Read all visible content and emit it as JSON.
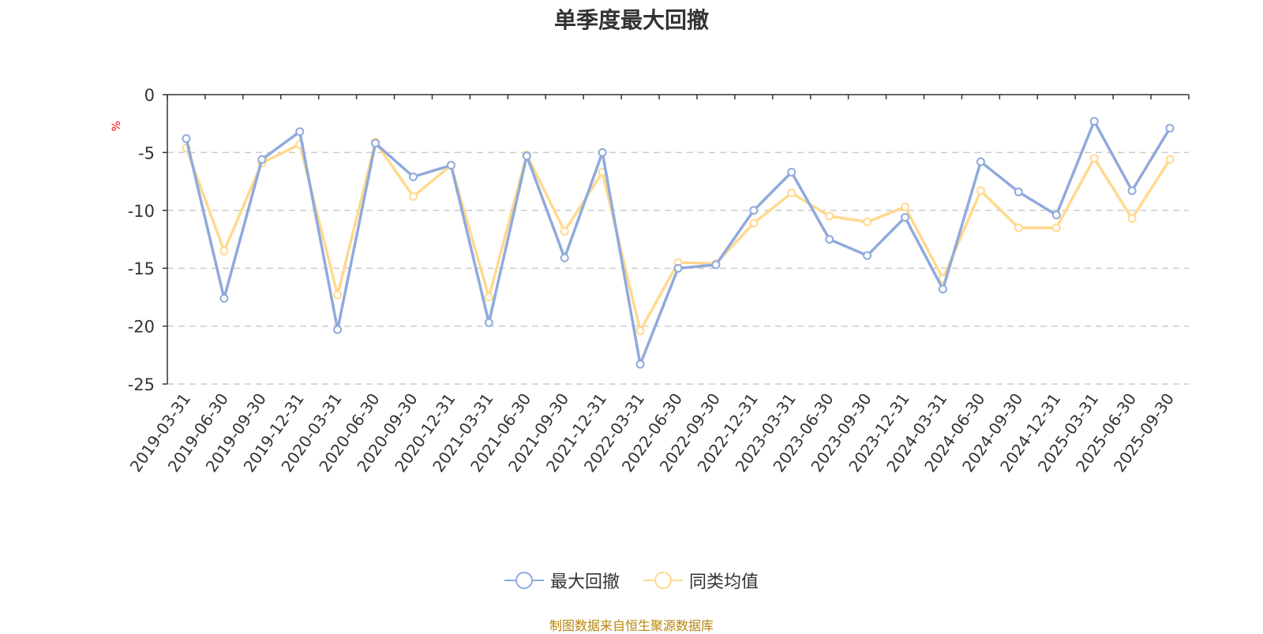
{
  "chart_data": {
    "type": "line",
    "title": "单季度最大回撤",
    "ylabel": "%",
    "ylim": [
      -25,
      0
    ],
    "yticks": [
      0,
      -5,
      -10,
      -15,
      -20,
      -25
    ],
    "grid": true,
    "legend_position": "bottom",
    "categories": [
      "2019-03-31",
      "2019-06-30",
      "2019-09-30",
      "2019-12-31",
      "2020-03-31",
      "2020-06-30",
      "2020-09-30",
      "2020-12-31",
      "2021-03-31",
      "2021-06-30",
      "2021-09-30",
      "2021-12-31",
      "2022-03-31",
      "2022-06-30",
      "2022-09-30",
      "2022-12-31",
      "2023-03-31",
      "2023-06-30",
      "2023-09-30",
      "2023-12-31",
      "2024-03-31",
      "2024-06-30",
      "2024-09-30",
      "2024-12-31",
      "2025-03-31",
      "2025-06-30",
      "2025-09-30"
    ],
    "series": [
      {
        "name": "最大回撤",
        "color": "#8faadc",
        "values": [
          -3.8,
          -17.6,
          -5.6,
          -3.2,
          -20.3,
          -4.2,
          -7.1,
          -6.1,
          -19.7,
          -5.3,
          -14.1,
          -5.0,
          -23.3,
          -15.0,
          -14.7,
          -10.0,
          -6.7,
          -12.5,
          -13.9,
          -10.6,
          -16.8,
          -5.8,
          -8.4,
          -10.4,
          -2.3,
          -8.3,
          -2.9
        ]
      },
      {
        "name": "同类均值",
        "color": "#ffd98e",
        "values": [
          -4.6,
          -13.5,
          -5.9,
          -4.3,
          -17.3,
          -4.1,
          -8.8,
          -6.1,
          -17.5,
          -5.2,
          -11.8,
          -6.7,
          -20.4,
          -14.5,
          -14.6,
          -11.1,
          -8.5,
          -10.5,
          -11.0,
          -9.7,
          -15.9,
          -8.3,
          -11.5,
          -11.5,
          -5.5,
          -10.7,
          -5.6
        ]
      }
    ]
  },
  "footer": {
    "source": "制图数据来自恒生聚源数据库"
  }
}
